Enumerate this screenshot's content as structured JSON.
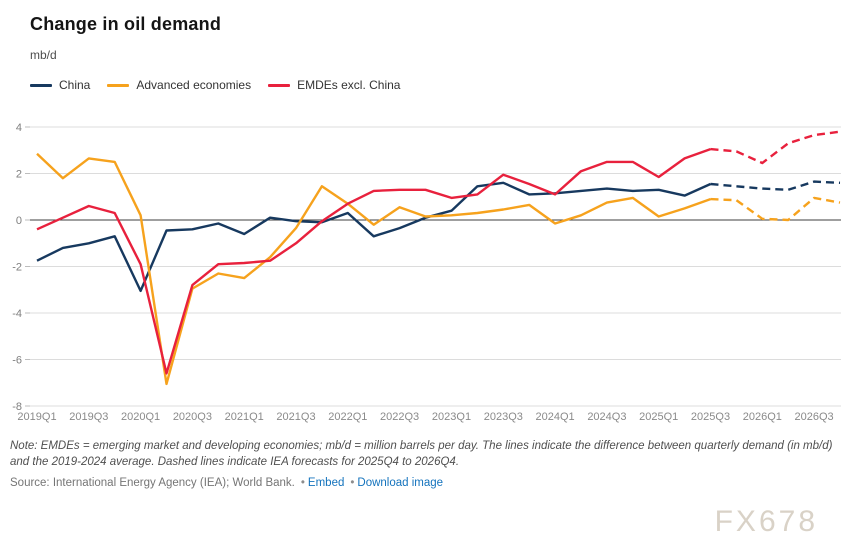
{
  "header": {
    "title": "Change in oil demand",
    "unit_label": "mb/d"
  },
  "legend": [
    {
      "label": "China",
      "color": "#17395f"
    },
    {
      "label": "Advanced economies",
      "color": "#f6a21d"
    },
    {
      "label": "EMDEs excl. China",
      "color": "#e8213d"
    }
  ],
  "chart_data": {
    "type": "line",
    "title": "Change in oil demand",
    "ylabel": "mb/d",
    "ylim": [
      -8,
      4
    ],
    "ytick_step": 2,
    "xtick_every": 2,
    "grid": true,
    "legend_position": "top-left",
    "forecast_start_index": 26,
    "forecast_style": "dashed",
    "forecast_range": "2025Q4 to 2026Q4",
    "categories": [
      "2019Q1",
      "2019Q2",
      "2019Q3",
      "2019Q4",
      "2020Q1",
      "2020Q2",
      "2020Q3",
      "2020Q4",
      "2021Q1",
      "2021Q2",
      "2021Q3",
      "2021Q4",
      "2022Q1",
      "2022Q2",
      "2022Q3",
      "2022Q4",
      "2023Q1",
      "2023Q2",
      "2023Q3",
      "2023Q4",
      "2024Q1",
      "2024Q2",
      "2024Q3",
      "2024Q4",
      "2025Q1",
      "2025Q2",
      "2025Q3",
      "2025Q4",
      "2026Q1",
      "2026Q2",
      "2026Q3",
      "2026Q4"
    ],
    "series": [
      {
        "name": "China",
        "color": "#17395f",
        "values": [
          -1.75,
          -1.2,
          -1.0,
          -0.7,
          -3.05,
          -0.45,
          -0.4,
          -0.15,
          -0.6,
          0.1,
          -0.05,
          -0.1,
          0.3,
          -0.7,
          -0.35,
          0.1,
          0.4,
          1.45,
          1.6,
          1.1,
          1.15,
          1.25,
          1.35,
          1.25,
          1.3,
          1.05,
          1.55,
          1.45,
          1.35,
          1.3,
          1.65,
          1.6
        ]
      },
      {
        "name": "Advanced economies",
        "color": "#f6a21d",
        "values": [
          2.85,
          1.8,
          2.65,
          2.5,
          0.2,
          -7.05,
          -2.95,
          -2.3,
          -2.5,
          -1.6,
          -0.35,
          1.45,
          0.7,
          -0.2,
          0.55,
          0.15,
          0.2,
          0.3,
          0.45,
          0.65,
          -0.15,
          0.2,
          0.75,
          0.95,
          0.15,
          0.5,
          0.9,
          0.85,
          0.05,
          0.0,
          0.95,
          0.75
        ]
      },
      {
        "name": "EMDEs excl. China",
        "color": "#e8213d",
        "values": [
          -0.4,
          0.1,
          0.6,
          0.3,
          -1.9,
          -6.6,
          -2.8,
          -1.9,
          -1.85,
          -1.75,
          -1.0,
          -0.05,
          0.7,
          1.25,
          1.3,
          1.3,
          0.95,
          1.1,
          1.95,
          1.55,
          1.1,
          2.1,
          2.5,
          2.5,
          1.85,
          2.65,
          3.05,
          2.95,
          2.45,
          3.3,
          3.65,
          3.8
        ]
      }
    ]
  },
  "footer": {
    "note": "Note: EMDEs = emerging market and developing economies; mb/d = million barrels per day. The lines indicate the difference between quarterly demand (in mb/d) and the 2019-2024 average. Dashed lines indicate IEA forecasts for 2025Q4 to 2026Q4.",
    "source_prefix": "Source: International Energy Agency (IEA); World Bank.",
    "separator": "•",
    "links": [
      {
        "label": "Embed"
      },
      {
        "label": "Download image"
      }
    ]
  },
  "watermark": "FX678"
}
